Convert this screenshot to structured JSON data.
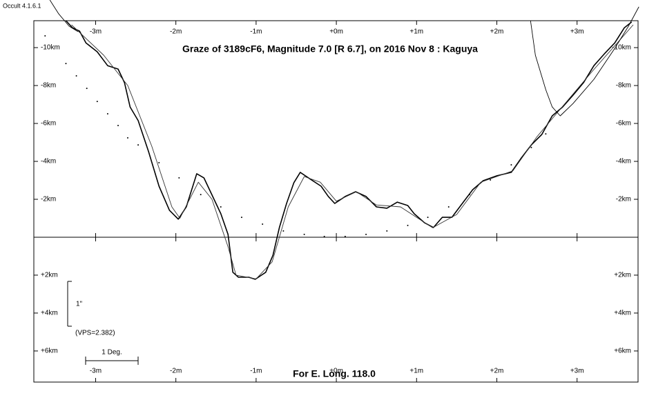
{
  "chart_data": {
    "type": "line",
    "corner_label": "Occult 4.1.6.1",
    "title": "Graze of  3189cF6,  Magnitude 7.0 [R 6.7],  on 2016 Nov  8  :  Kaguya",
    "footer": "For E. Long. 118.0",
    "scale_vertical_label": "1\"",
    "scale_vps": "(VPS=2.382)",
    "scale_horizontal_label": "1 Deg.",
    "xlim": [
      -3.77,
      3.76
    ],
    "ylim": [
      7.64,
      -11.42
    ],
    "xticks": [
      {
        "value": -3,
        "label": "-3m"
      },
      {
        "value": -2,
        "label": "-2m"
      },
      {
        "value": -1,
        "label": "-1m"
      },
      {
        "value": 0,
        "label": "+0m"
      },
      {
        "value": 1,
        "label": "+1m"
      },
      {
        "value": 2,
        "label": "+2m"
      },
      {
        "value": 3,
        "label": "+3m"
      }
    ],
    "yticks": [
      {
        "value": -10,
        "label": "-10km"
      },
      {
        "value": -8,
        "label": "-8km"
      },
      {
        "value": -6,
        "label": "-6km"
      },
      {
        "value": -4,
        "label": "-4km"
      },
      {
        "value": -2,
        "label": "-2km"
      },
      {
        "value": 2,
        "label": "+2km"
      },
      {
        "value": 4,
        "label": "+4km"
      },
      {
        "value": 6,
        "label": "+6km"
      }
    ],
    "series": [
      {
        "color": "#000000",
        "style": "line",
        "linewidth": 1.6,
        "x": [
          -3.37,
          -3.29,
          -3.2,
          -3.12,
          -2.98,
          -2.85,
          -2.72,
          -2.64,
          -2.57,
          -2.47,
          -2.34,
          -2.21,
          -2.08,
          -1.97,
          -1.87,
          -1.74,
          -1.65,
          -1.52,
          -1.44,
          -1.35,
          -1.29,
          -1.22,
          -1.09,
          -1.01,
          -0.88,
          -0.79,
          -0.71,
          -0.62,
          -0.53,
          -0.45,
          -0.32,
          -0.19,
          -0.1,
          -0.02,
          0.11,
          0.24,
          0.37,
          0.5,
          0.63,
          0.76,
          0.89,
          0.97,
          1.1,
          1.21,
          1.32,
          1.44,
          1.57,
          1.7,
          1.83,
          2.0,
          2.18,
          2.3,
          2.43,
          2.56,
          2.69,
          2.82,
          2.95,
          3.08,
          3.21,
          3.34,
          3.47,
          3.59,
          3.68
        ],
        "values": [
          -11.42,
          -11.05,
          -10.87,
          -10.25,
          -9.78,
          -9.05,
          -8.87,
          -8.15,
          -6.87,
          -6.15,
          -4.51,
          -2.69,
          -1.42,
          -0.95,
          -1.6,
          -3.35,
          -3.13,
          -1.96,
          -1.24,
          -0.15,
          1.85,
          2.11,
          2.11,
          2.22,
          1.85,
          0.95,
          -0.51,
          -1.78,
          -2.87,
          -3.42,
          -3.05,
          -2.69,
          -2.15,
          -1.78,
          -2.15,
          -2.4,
          -2.15,
          -1.6,
          -1.53,
          -1.85,
          -1.67,
          -1.24,
          -0.76,
          -0.51,
          -1.05,
          -1.05,
          -1.78,
          -2.51,
          -2.98,
          -3.24,
          -3.42,
          -4.15,
          -4.87,
          -5.42,
          -6.4,
          -6.87,
          -7.49,
          -8.15,
          -9.05,
          -9.67,
          -10.25,
          -11.05,
          -11.35
        ]
      },
      {
        "color": "#333333",
        "style": "line",
        "linewidth": 0.9,
        "x": [
          -3.3,
          -2.9,
          -2.6,
          -2.3,
          -2.05,
          -1.95,
          -1.72,
          -1.55,
          -1.35,
          -1.25,
          -1.0,
          -0.8,
          -0.6,
          -0.4,
          -0.2,
          0.0,
          0.25,
          0.5,
          0.8,
          1.2,
          1.5,
          1.8,
          2.2,
          2.5,
          2.8,
          3.2,
          3.7
        ],
        "values": [
          -11.2,
          -9.6,
          -8.0,
          -4.8,
          -1.6,
          -1.0,
          -2.9,
          -2.0,
          0.5,
          2.0,
          2.2,
          1.3,
          -1.6,
          -3.2,
          -2.9,
          -1.9,
          -2.4,
          -1.7,
          -1.6,
          -0.5,
          -1.2,
          -2.9,
          -3.5,
          -5.3,
          -6.8,
          -8.8,
          -11.2
        ]
      },
      {
        "color": "#000000",
        "style": "dots",
        "x": [
          -3.63,
          -3.37,
          -3.24,
          -3.11,
          -2.98,
          -2.85,
          -2.72,
          -2.6,
          -2.47,
          -2.21,
          -1.96,
          -1.69,
          -1.44,
          -1.18,
          -0.92,
          -0.66,
          -0.4,
          -0.15,
          0.11,
          0.37,
          0.63,
          0.89,
          1.14,
          1.4,
          1.66,
          1.92,
          2.18,
          2.43,
          2.61
        ],
        "values": [
          -10.62,
          -9.16,
          -8.51,
          -7.85,
          -7.16,
          -6.51,
          -5.89,
          -5.24,
          -4.87,
          -3.93,
          -3.13,
          -2.25,
          -1.6,
          -1.05,
          -0.69,
          -0.33,
          -0.15,
          -0.04,
          -0.04,
          -0.15,
          -0.33,
          -0.62,
          -1.05,
          -1.6,
          -2.25,
          -3.02,
          -3.82,
          -4.73,
          -5.45
        ]
      },
      {
        "color": "#000000",
        "style": "line",
        "linewidth": 0.9,
        "x": [
          -3.57,
          -3.46,
          -3.33,
          -3.22
        ],
        "values": [
          -12.51,
          -11.78,
          -11.13,
          -10.84
        ]
      },
      {
        "color": "#000000",
        "style": "line",
        "linewidth": 0.9,
        "x": [
          2.42,
          2.48,
          2.61,
          2.69,
          2.79,
          2.95,
          3.21,
          3.47,
          3.64,
          3.77
        ],
        "values": [
          -11.42,
          -9.6,
          -7.78,
          -6.87,
          -6.4,
          -7.05,
          -8.33,
          -9.96,
          -11.13,
          -12.15
        ]
      }
    ]
  }
}
